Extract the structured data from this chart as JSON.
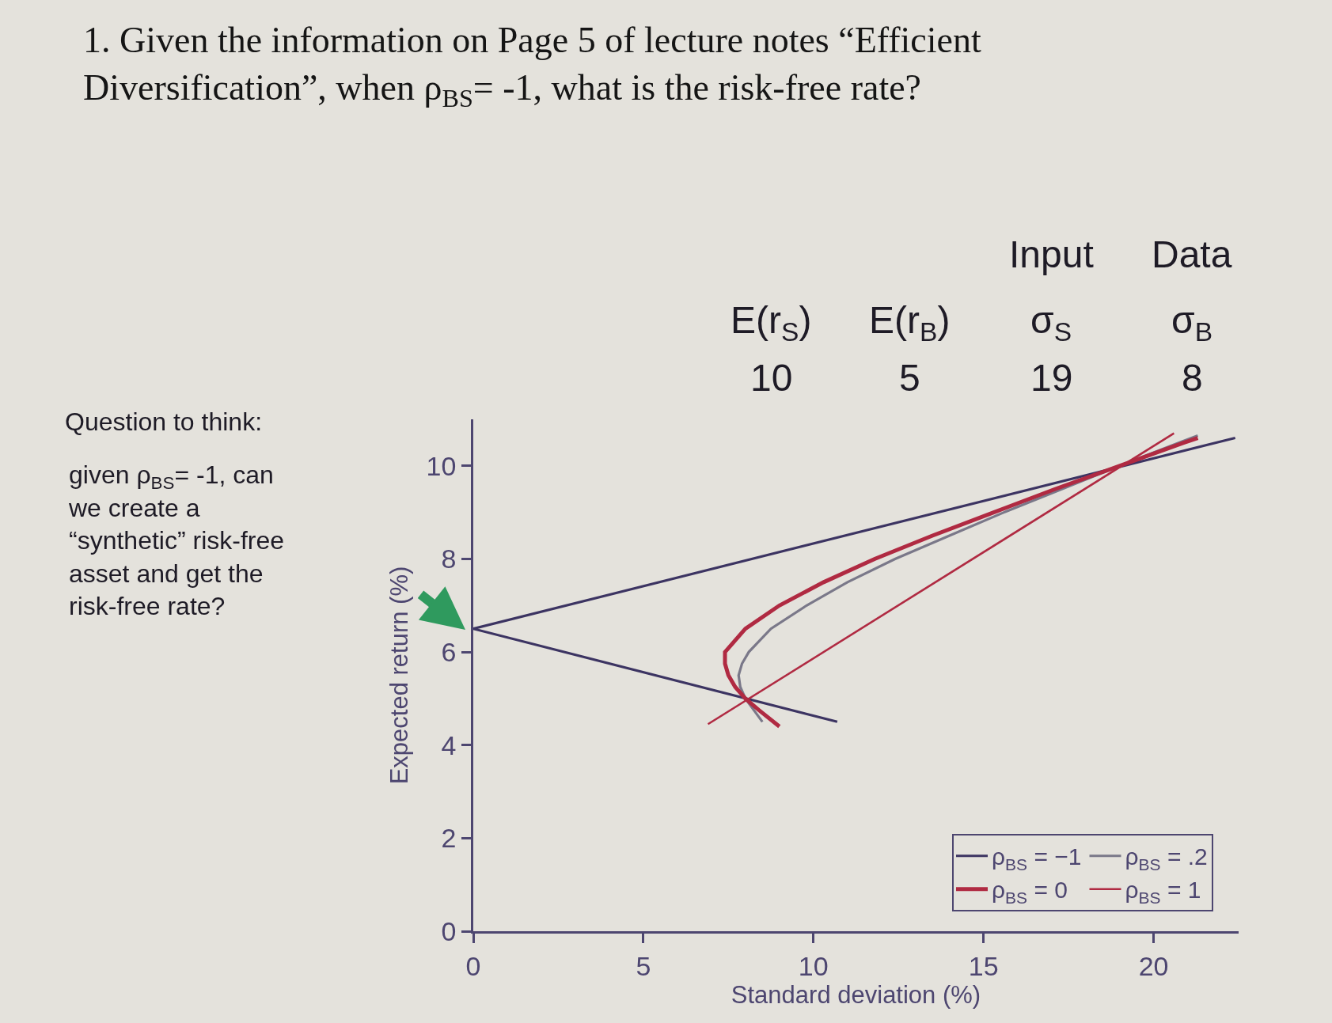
{
  "chart_data": {
    "type": "line",
    "title": "1. Given the information on Page 5 of lecture notes “Efficient Diversification”, when ρ$_{BS}$= -1, what is the risk-free rate?",
    "xlabel": "Standard deviation (%)",
    "ylabel": "Expected return (%)",
    "xlim": [
      0,
      22.5
    ],
    "ylim": [
      0,
      11
    ],
    "xticks": [
      0,
      5,
      10,
      15,
      20
    ],
    "yticks": [
      0,
      2,
      4,
      6,
      8,
      10
    ],
    "grid": false,
    "legend": "bottom right",
    "series": [
      {
        "name": "ρ$_{BS}$ = −1",
        "color": "#3c3462",
        "x": [
          10.7,
          0,
          22.4
        ],
        "values": [
          4.5,
          6.5,
          10.6
        ]
      },
      {
        "name": "ρ$_{BS}$ = .2",
        "color": "#7a7889",
        "x": [
          8.5,
          8.0,
          7.85,
          7.8,
          7.9,
          8.1,
          8.75,
          9.8,
          11.0,
          12.4,
          14.0,
          15.6,
          17.3,
          19.0,
          20.75,
          21.3
        ],
        "values": [
          4.5,
          5.0,
          5.25,
          5.5,
          5.75,
          6.0,
          6.5,
          7.0,
          7.5,
          8.0,
          8.5,
          9.0,
          9.5,
          10.0,
          10.5,
          10.65
        ]
      },
      {
        "name": "ρ$_{BS}$ = 0",
        "color": "#b02a42",
        "x": [
          9.0,
          8.4,
          8.0,
          7.7,
          7.5,
          7.4,
          7.4,
          7.7,
          8.0,
          9.0,
          10.3,
          11.8,
          13.5,
          15.3,
          17.1,
          19.0,
          20.9,
          21.3
        ],
        "values": [
          4.4,
          4.75,
          5.0,
          5.25,
          5.5,
          5.75,
          6.0,
          6.25,
          6.5,
          7.0,
          7.5,
          8.0,
          8.5,
          9.0,
          9.5,
          10.0,
          10.5,
          10.6
        ]
      },
      {
        "name": "ρ$_{BS}$ = 1",
        "color": "#b02a42",
        "x": [
          6.9,
          20.6
        ],
        "values": [
          4.45,
          10.7
        ]
      }
    ],
    "annotations": [
      "Question to think:",
      "given ρ$_{BS}$= -1, can\nwe create a\n“synthetic” risk-free\nasset and get the\nrisk-free rate?",
      "Input",
      "Data",
      "E(r$_{S}$)",
      "E(r$_{B}$)",
      "σ$_{S}$",
      "σ$_{B}$",
      "10",
      "5",
      "19",
      "8"
    ]
  }
}
